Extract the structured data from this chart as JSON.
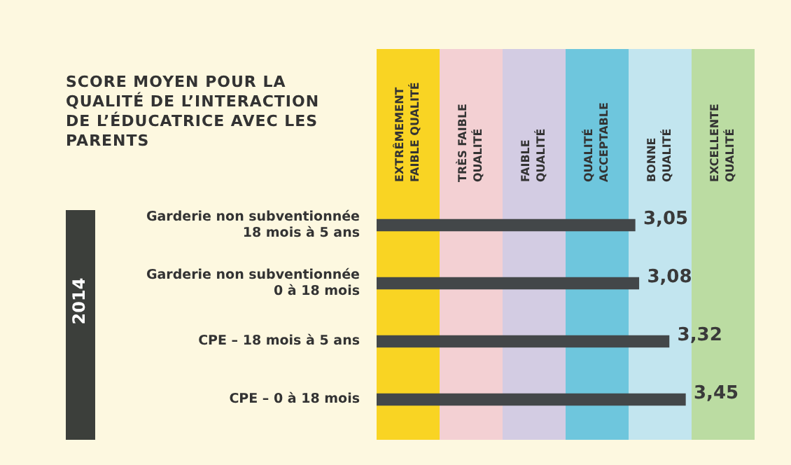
{
  "chart_data": {
    "type": "bar",
    "orientation": "horizontal",
    "title": "SCORE MOYEN POUR LA QUALITÉ DE L’INTERACTION DE L’ÉDUCATRICE AVEC LES PARENTS",
    "categories": [
      "Garderie non subventionnée\n18 mois à 5 ans",
      "Garderie non subventionnée\n0 à 18 mois",
      "CPE – 18 mois à 5 ans",
      "CPE – 0 à 18 mois"
    ],
    "values": [
      3.05,
      3.08,
      3.32,
      3.45
    ],
    "color": "#434749",
    "data_labels": true,
    "value_labels": [
      "3,05",
      "3,08",
      "3,32",
      "3,45"
    ],
    "tick_labels": "y",
    "grid": false,
    "legend": false,
    "bands": [
      {
        "axis": "x",
        "from": 1,
        "to": 1.5,
        "label": "EXTRÊMEMENT\nFAIBLE QUALITÉ",
        "color": "#f9d423"
      },
      {
        "axis": "x",
        "from": 1.5,
        "to": 2,
        "label": "TRÈS FAIBLE\nQUALITÉ",
        "color": "#f3d0d3"
      },
      {
        "axis": "x",
        "from": 2,
        "to": 2.5,
        "label": "FAIBLE\nQUALITÉ",
        "color": "#d3cce3"
      },
      {
        "axis": "x",
        "from": 2.5,
        "to": 3,
        "label": "QUALITÉ\nACCEPTABLE",
        "color": "#6ec6dd"
      },
      {
        "axis": "x",
        "from": 3,
        "to": 3.5,
        "label": "BONNE\nQUALITÉ",
        "color": "#c2e5ef"
      },
      {
        "axis": "x",
        "from": 3.5,
        "to": 4,
        "label": "EXCELLENTE\nQUALITÉ",
        "color": "#bbdca2"
      }
    ],
    "annotations": [
      "2014"
    ]
  }
}
